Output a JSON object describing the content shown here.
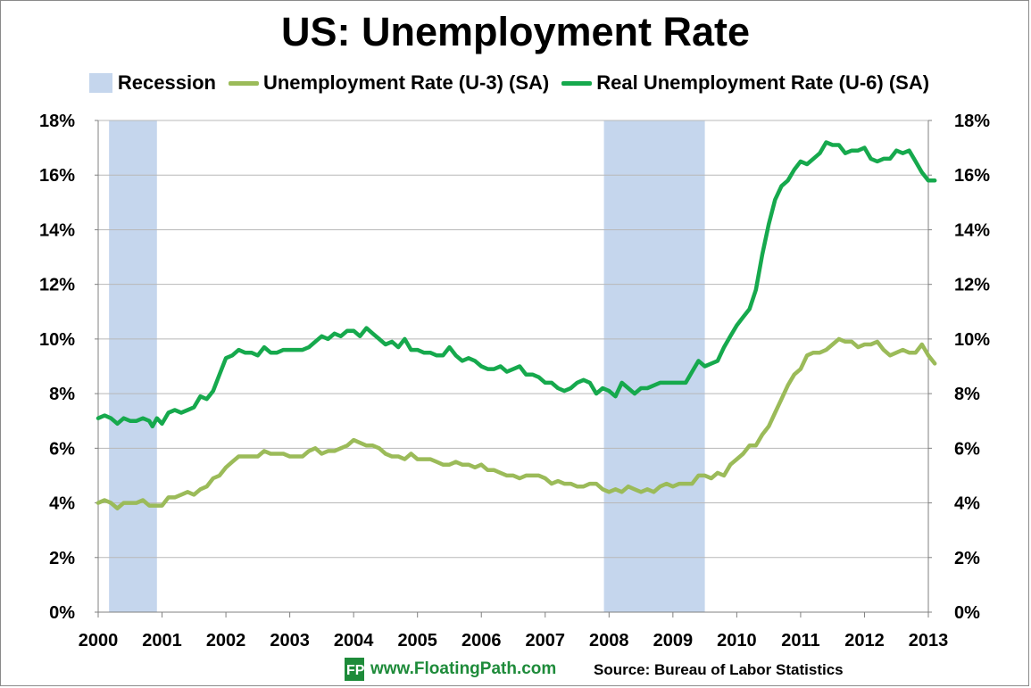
{
  "chart_data": {
    "type": "line",
    "title": "US: Unemployment Rate",
    "legend": [
      {
        "name": "Recession",
        "kind": "band",
        "color": "#c5d6ed"
      },
      {
        "name": "Unemployment Rate (U-3) (SA)",
        "kind": "line",
        "color": "#9bbb59"
      },
      {
        "name": "Real Unemployment Rate (U-6) (SA)",
        "kind": "line",
        "color": "#16a94d"
      }
    ],
    "x_range": [
      2000,
      2013.1
    ],
    "x_ticks": [
      "2000",
      "2001",
      "2002",
      "2003",
      "2004",
      "2005",
      "2006",
      "2007",
      "2008",
      "2009",
      "2010",
      "2011",
      "2012",
      "2013"
    ],
    "ylim": [
      0,
      18
    ],
    "y_ticks": [
      "0%",
      "2%",
      "4%",
      "6%",
      "8%",
      "10%",
      "12%",
      "14%",
      "16%",
      "18%"
    ],
    "grid": true,
    "recessions": [
      [
        2000.17,
        2000.92
      ],
      [
        2007.92,
        2009.5
      ]
    ],
    "series": [
      {
        "name": "Real Unemployment Rate (U-6) (SA)",
        "color": "#16a94d",
        "points": [
          [
            2000.0,
            7.1
          ],
          [
            2000.1,
            7.2
          ],
          [
            2000.2,
            7.1
          ],
          [
            2000.3,
            6.9
          ],
          [
            2000.4,
            7.1
          ],
          [
            2000.5,
            7.0
          ],
          [
            2000.6,
            7.0
          ],
          [
            2000.7,
            7.1
          ],
          [
            2000.8,
            7.0
          ],
          [
            2000.85,
            6.8
          ],
          [
            2000.92,
            7.1
          ],
          [
            2001.0,
            6.9
          ],
          [
            2001.1,
            7.3
          ],
          [
            2001.2,
            7.4
          ],
          [
            2001.3,
            7.3
          ],
          [
            2001.4,
            7.4
          ],
          [
            2001.5,
            7.5
          ],
          [
            2001.6,
            7.9
          ],
          [
            2001.7,
            7.8
          ],
          [
            2001.8,
            8.1
          ],
          [
            2001.9,
            8.7
          ],
          [
            2002.0,
            9.3
          ],
          [
            2002.1,
            9.4
          ],
          [
            2002.2,
            9.6
          ],
          [
            2002.3,
            9.5
          ],
          [
            2002.4,
            9.5
          ],
          [
            2002.5,
            9.4
          ],
          [
            2002.6,
            9.7
          ],
          [
            2002.7,
            9.5
          ],
          [
            2002.8,
            9.5
          ],
          [
            2002.9,
            9.6
          ],
          [
            2003.0,
            9.6
          ],
          [
            2003.2,
            9.6
          ],
          [
            2003.3,
            9.7
          ],
          [
            2003.4,
            9.9
          ],
          [
            2003.5,
            10.1
          ],
          [
            2003.6,
            10.0
          ],
          [
            2003.7,
            10.2
          ],
          [
            2003.8,
            10.1
          ],
          [
            2003.9,
            10.3
          ],
          [
            2004.0,
            10.3
          ],
          [
            2004.1,
            10.1
          ],
          [
            2004.2,
            10.4
          ],
          [
            2004.3,
            10.2
          ],
          [
            2004.4,
            10.0
          ],
          [
            2004.5,
            9.8
          ],
          [
            2004.6,
            9.9
          ],
          [
            2004.7,
            9.7
          ],
          [
            2004.8,
            10.0
          ],
          [
            2004.9,
            9.6
          ],
          [
            2005.0,
            9.6
          ],
          [
            2005.1,
            9.5
          ],
          [
            2005.2,
            9.5
          ],
          [
            2005.3,
            9.4
          ],
          [
            2005.4,
            9.4
          ],
          [
            2005.5,
            9.7
          ],
          [
            2005.6,
            9.4
          ],
          [
            2005.7,
            9.2
          ],
          [
            2005.8,
            9.3
          ],
          [
            2005.9,
            9.2
          ],
          [
            2006.0,
            9.0
          ],
          [
            2006.1,
            8.9
          ],
          [
            2006.2,
            8.9
          ],
          [
            2006.3,
            9.0
          ],
          [
            2006.4,
            8.8
          ],
          [
            2006.5,
            8.9
          ],
          [
            2006.6,
            9.0
          ],
          [
            2006.7,
            8.7
          ],
          [
            2006.8,
            8.7
          ],
          [
            2006.9,
            8.6
          ],
          [
            2007.0,
            8.4
          ],
          [
            2007.1,
            8.4
          ],
          [
            2007.2,
            8.2
          ],
          [
            2007.3,
            8.1
          ],
          [
            2007.4,
            8.2
          ],
          [
            2007.5,
            8.4
          ],
          [
            2007.6,
            8.5
          ],
          [
            2007.7,
            8.4
          ],
          [
            2007.8,
            8.0
          ],
          [
            2007.9,
            8.2
          ],
          [
            2008.0,
            8.1
          ],
          [
            2008.1,
            7.9
          ],
          [
            2008.2,
            8.4
          ],
          [
            2008.3,
            8.2
          ],
          [
            2008.4,
            8.0
          ],
          [
            2008.5,
            8.2
          ],
          [
            2008.6,
            8.2
          ],
          [
            2008.7,
            8.3
          ],
          [
            2008.8,
            8.4
          ],
          [
            2008.9,
            8.4
          ],
          [
            2009.0,
            8.4
          ],
          [
            2009.1,
            8.4
          ],
          [
            2009.2,
            8.4
          ],
          [
            2009.3,
            8.8
          ],
          [
            2009.4,
            9.2
          ],
          [
            2009.5,
            9.0
          ],
          [
            2009.6,
            9.1
          ],
          [
            2009.7,
            9.2
          ],
          [
            2009.8,
            9.7
          ],
          [
            2009.9,
            10.1
          ],
          [
            2010.0,
            10.5
          ],
          [
            2010.1,
            10.8
          ],
          [
            2010.2,
            11.1
          ],
          [
            2010.3,
            11.8
          ],
          [
            2010.4,
            13.1
          ],
          [
            2010.5,
            14.2
          ],
          [
            2010.6,
            15.1
          ],
          [
            2010.7,
            15.6
          ],
          [
            2010.8,
            15.8
          ],
          [
            2010.9,
            16.2
          ],
          [
            2011.0,
            16.5
          ],
          [
            2011.1,
            16.4
          ],
          [
            2011.2,
            16.6
          ],
          [
            2011.3,
            16.8
          ],
          [
            2011.4,
            17.2
          ],
          [
            2011.5,
            17.1
          ],
          [
            2011.6,
            17.1
          ],
          [
            2011.7,
            16.8
          ],
          [
            2011.8,
            16.9
          ],
          [
            2011.9,
            16.9
          ],
          [
            2012.0,
            17.0
          ],
          [
            2012.1,
            16.6
          ],
          [
            2012.2,
            16.5
          ],
          [
            2012.3,
            16.6
          ],
          [
            2012.4,
            16.6
          ],
          [
            2012.5,
            16.9
          ],
          [
            2012.6,
            16.8
          ],
          [
            2012.7,
            16.9
          ],
          [
            2012.8,
            16.5
          ],
          [
            2012.9,
            16.1
          ],
          [
            2013.0,
            15.8
          ],
          [
            2013.1,
            15.8
          ]
        ]
      },
      {
        "name": "Unemployment Rate (U-3) (SA)",
        "color": "#9bbb59",
        "points": [
          [
            2000.0,
            4.0
          ],
          [
            2000.1,
            4.1
          ],
          [
            2000.2,
            4.0
          ],
          [
            2000.3,
            3.8
          ],
          [
            2000.4,
            4.0
          ],
          [
            2000.5,
            4.0
          ],
          [
            2000.6,
            4.0
          ],
          [
            2000.7,
            4.1
          ],
          [
            2000.8,
            3.9
          ],
          [
            2000.9,
            3.9
          ],
          [
            2001.0,
            3.9
          ],
          [
            2001.1,
            4.2
          ],
          [
            2001.2,
            4.2
          ],
          [
            2001.3,
            4.3
          ],
          [
            2001.4,
            4.4
          ],
          [
            2001.5,
            4.3
          ],
          [
            2001.6,
            4.5
          ],
          [
            2001.7,
            4.6
          ],
          [
            2001.8,
            4.9
          ],
          [
            2001.9,
            5.0
          ],
          [
            2002.0,
            5.3
          ],
          [
            2002.1,
            5.5
          ],
          [
            2002.2,
            5.7
          ],
          [
            2002.3,
            5.7
          ],
          [
            2002.4,
            5.7
          ],
          [
            2002.5,
            5.7
          ],
          [
            2002.6,
            5.9
          ],
          [
            2002.7,
            5.8
          ],
          [
            2002.8,
            5.8
          ],
          [
            2002.9,
            5.8
          ],
          [
            2003.0,
            5.7
          ],
          [
            2003.1,
            5.7
          ],
          [
            2003.2,
            5.7
          ],
          [
            2003.3,
            5.9
          ],
          [
            2003.4,
            6.0
          ],
          [
            2003.5,
            5.8
          ],
          [
            2003.6,
            5.9
          ],
          [
            2003.7,
            5.9
          ],
          [
            2003.8,
            6.0
          ],
          [
            2003.9,
            6.1
          ],
          [
            2004.0,
            6.3
          ],
          [
            2004.1,
            6.2
          ],
          [
            2004.2,
            6.1
          ],
          [
            2004.3,
            6.1
          ],
          [
            2004.4,
            6.0
          ],
          [
            2004.5,
            5.8
          ],
          [
            2004.6,
            5.7
          ],
          [
            2004.7,
            5.7
          ],
          [
            2004.8,
            5.6
          ],
          [
            2004.9,
            5.8
          ],
          [
            2005.0,
            5.6
          ],
          [
            2005.1,
            5.6
          ],
          [
            2005.2,
            5.6
          ],
          [
            2005.3,
            5.5
          ],
          [
            2005.4,
            5.4
          ],
          [
            2005.5,
            5.4
          ],
          [
            2005.6,
            5.5
          ],
          [
            2005.7,
            5.4
          ],
          [
            2005.8,
            5.4
          ],
          [
            2005.9,
            5.3
          ],
          [
            2006.0,
            5.4
          ],
          [
            2006.1,
            5.2
          ],
          [
            2006.2,
            5.2
          ],
          [
            2006.3,
            5.1
          ],
          [
            2006.4,
            5.0
          ],
          [
            2006.5,
            5.0
          ],
          [
            2006.6,
            4.9
          ],
          [
            2006.7,
            5.0
          ],
          [
            2006.8,
            5.0
          ],
          [
            2006.9,
            5.0
          ],
          [
            2007.0,
            4.9
          ],
          [
            2007.1,
            4.7
          ],
          [
            2007.2,
            4.8
          ],
          [
            2007.3,
            4.7
          ],
          [
            2007.4,
            4.7
          ],
          [
            2007.5,
            4.6
          ],
          [
            2007.6,
            4.6
          ],
          [
            2007.7,
            4.7
          ],
          [
            2007.8,
            4.7
          ],
          [
            2007.9,
            4.5
          ],
          [
            2008.0,
            4.4
          ],
          [
            2008.1,
            4.5
          ],
          [
            2008.2,
            4.4
          ],
          [
            2008.3,
            4.6
          ],
          [
            2008.4,
            4.5
          ],
          [
            2008.5,
            4.4
          ],
          [
            2008.6,
            4.5
          ],
          [
            2008.7,
            4.4
          ],
          [
            2008.8,
            4.6
          ],
          [
            2008.9,
            4.7
          ],
          [
            2009.0,
            4.6
          ],
          [
            2009.1,
            4.7
          ],
          [
            2009.2,
            4.7
          ],
          [
            2009.3,
            4.7
          ],
          [
            2009.4,
            5.0
          ],
          [
            2009.5,
            5.0
          ],
          [
            2009.6,
            4.9
          ],
          [
            2009.7,
            5.1
          ],
          [
            2009.8,
            5.0
          ],
          [
            2009.9,
            5.4
          ],
          [
            2010.0,
            5.6
          ],
          [
            2010.1,
            5.8
          ],
          [
            2010.2,
            6.1
          ],
          [
            2010.3,
            6.1
          ],
          [
            2010.4,
            6.5
          ],
          [
            2010.5,
            6.8
          ],
          [
            2010.6,
            7.3
          ],
          [
            2010.7,
            7.8
          ],
          [
            2010.8,
            8.3
          ],
          [
            2010.9,
            8.7
          ],
          [
            2011.0,
            8.9
          ],
          [
            2011.1,
            9.4
          ],
          [
            2011.2,
            9.5
          ],
          [
            2011.3,
            9.5
          ],
          [
            2011.4,
            9.6
          ],
          [
            2011.5,
            9.8
          ],
          [
            2011.6,
            10.0
          ],
          [
            2011.7,
            9.9
          ],
          [
            2011.8,
            9.9
          ],
          [
            2011.9,
            9.7
          ],
          [
            2012.0,
            9.8
          ],
          [
            2012.1,
            9.8
          ],
          [
            2012.2,
            9.9
          ],
          [
            2012.3,
            9.6
          ],
          [
            2012.4,
            9.4
          ],
          [
            2012.5,
            9.5
          ],
          [
            2012.6,
            9.6
          ],
          [
            2012.7,
            9.5
          ],
          [
            2012.8,
            9.5
          ],
          [
            2012.9,
            9.8
          ],
          [
            2013.0,
            9.4
          ],
          [
            2013.1,
            9.1
          ]
        ]
      }
    ]
  },
  "footer": {
    "logo_letters": "FP",
    "site": "www.FloatingPath.com",
    "source": "Source: Bureau of Labor Statistics"
  }
}
